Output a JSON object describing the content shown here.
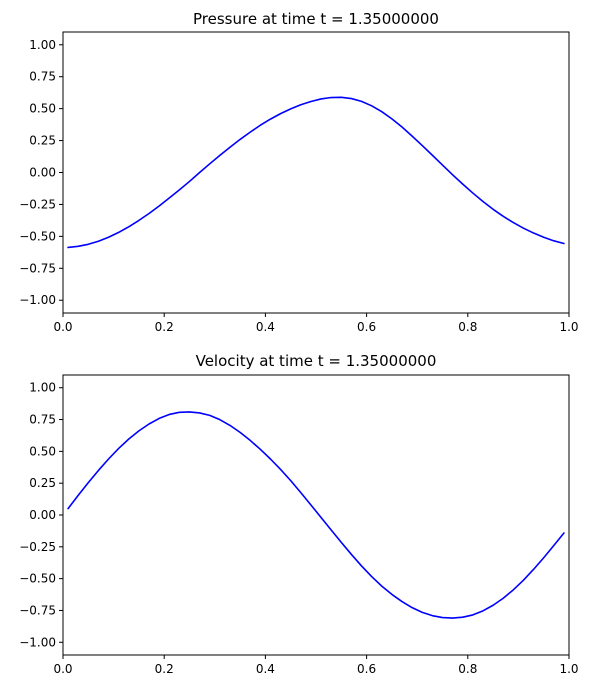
{
  "chart_data": [
    {
      "type": "line",
      "title": "Pressure at time t =      1.35000000",
      "xlabel": "",
      "ylabel": "",
      "xlim": [
        0,
        1
      ],
      "ylim": [
        -1.1,
        1.1
      ],
      "grid": false,
      "xticks": [
        0,
        0.2,
        0.4,
        0.6,
        0.8,
        1
      ],
      "xtick_labels": [
        "0.0",
        "0.2",
        "0.4",
        "0.6",
        "0.8",
        "1.0"
      ],
      "yticks": [
        -1,
        -0.75,
        -0.5,
        -0.25,
        0,
        0.25,
        0.5,
        0.75,
        1
      ],
      "ytick_labels": [
        "−1.00",
        "−0.75",
        "−0.50",
        "−0.25",
        "0.00",
        "0.25",
        "0.50",
        "0.75",
        "1.00"
      ],
      "series": [
        {
          "color": "#0000ff",
          "x": [
            0.01,
            0.03,
            0.05,
            0.07,
            0.09,
            0.11,
            0.13,
            0.15,
            0.17,
            0.19,
            0.21,
            0.23,
            0.25,
            0.27,
            0.29,
            0.31,
            0.33,
            0.35,
            0.37,
            0.39,
            0.41,
            0.43,
            0.45,
            0.47,
            0.49,
            0.51,
            0.53,
            0.55,
            0.57,
            0.59,
            0.61,
            0.63,
            0.65,
            0.67,
            0.69,
            0.71,
            0.73,
            0.75,
            0.77,
            0.79,
            0.81,
            0.83,
            0.85,
            0.87,
            0.89,
            0.91,
            0.93,
            0.95,
            0.97,
            0.99
          ],
          "y": [
            -0.587,
            -0.578,
            -0.562,
            -0.538,
            -0.507,
            -0.469,
            -0.425,
            -0.375,
            -0.321,
            -0.262,
            -0.2,
            -0.136,
            -0.07,
            0.0,
            0.068,
            0.134,
            0.198,
            0.259,
            0.316,
            0.37,
            0.418,
            0.461,
            0.498,
            0.53,
            0.556,
            0.576,
            0.587,
            0.589,
            0.579,
            0.557,
            0.522,
            0.476,
            0.42,
            0.356,
            0.285,
            0.211,
            0.135,
            0.058,
            -0.018,
            -0.091,
            -0.161,
            -0.227,
            -0.288,
            -0.343,
            -0.392,
            -0.436,
            -0.474,
            -0.507,
            -0.535,
            -0.556
          ]
        }
      ]
    },
    {
      "type": "line",
      "title": "Velocity at time t =      1.35000000",
      "xlabel": "",
      "ylabel": "",
      "xlim": [
        0,
        1
      ],
      "ylim": [
        -1.1,
        1.1
      ],
      "grid": false,
      "xticks": [
        0,
        0.2,
        0.4,
        0.6,
        0.8,
        1
      ],
      "xtick_labels": [
        "0.0",
        "0.2",
        "0.4",
        "0.6",
        "0.8",
        "1.0"
      ],
      "yticks": [
        -1,
        -0.75,
        -0.5,
        -0.25,
        0,
        0.25,
        0.5,
        0.75,
        1
      ],
      "ytick_labels": [
        "−1.00",
        "−0.75",
        "−0.50",
        "−0.25",
        "0.00",
        "0.25",
        "0.50",
        "0.75",
        "1.00"
      ],
      "series": [
        {
          "color": "#0000ff",
          "x": [
            0.01,
            0.03,
            0.05,
            0.07,
            0.09,
            0.11,
            0.13,
            0.15,
            0.17,
            0.19,
            0.21,
            0.23,
            0.25,
            0.27,
            0.29,
            0.31,
            0.33,
            0.35,
            0.37,
            0.39,
            0.41,
            0.43,
            0.45,
            0.47,
            0.49,
            0.51,
            0.53,
            0.55,
            0.57,
            0.59,
            0.61,
            0.63,
            0.65,
            0.67,
            0.69,
            0.71,
            0.73,
            0.75,
            0.77,
            0.79,
            0.81,
            0.83,
            0.85,
            0.87,
            0.89,
            0.91,
            0.93,
            0.95,
            0.97,
            0.99
          ],
          "y": [
            0.05,
            0.154,
            0.254,
            0.35,
            0.44,
            0.523,
            0.597,
            0.661,
            0.715,
            0.759,
            0.79,
            0.807,
            0.81,
            0.802,
            0.783,
            0.749,
            0.704,
            0.649,
            0.586,
            0.516,
            0.44,
            0.358,
            0.27,
            0.176,
            0.079,
            -0.02,
            -0.118,
            -0.215,
            -0.31,
            -0.4,
            -0.484,
            -0.559,
            -0.624,
            -0.68,
            -0.728,
            -0.765,
            -0.791,
            -0.806,
            -0.81,
            -0.803,
            -0.785,
            -0.753,
            -0.709,
            -0.654,
            -0.588,
            -0.512,
            -0.427,
            -0.336,
            -0.24,
            -0.141
          ]
        }
      ]
    }
  ]
}
